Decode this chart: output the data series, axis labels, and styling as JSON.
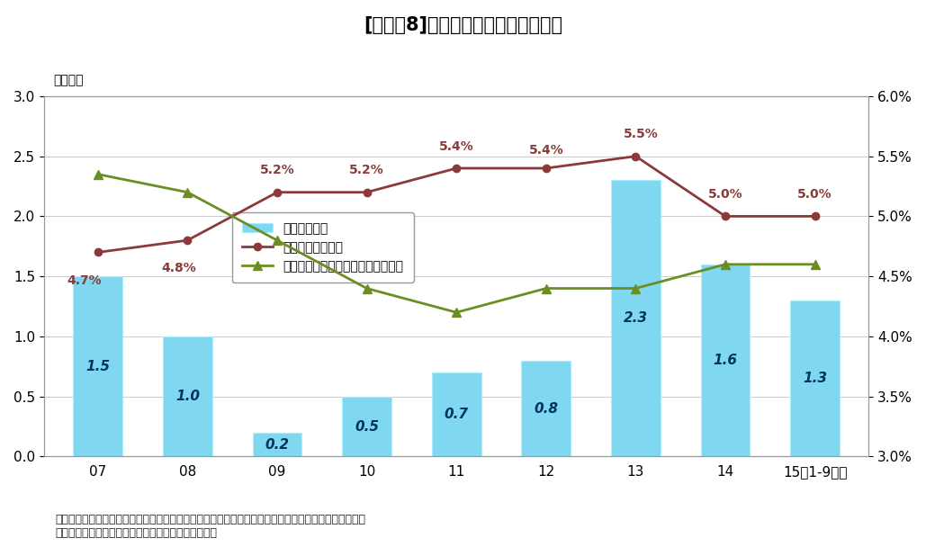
{
  "title": "[図表－8]：物件取得額と取得利回り",
  "categories": [
    "07",
    "08",
    "09",
    "10",
    "11",
    "12",
    "13",
    "14",
    "15（1-9月）"
  ],
  "bar_values": [
    1.5,
    1.0,
    0.2,
    0.5,
    0.7,
    0.8,
    2.3,
    1.6,
    1.3
  ],
  "bar_labels": [
    "1.5",
    "1.0",
    "0.2",
    "0.5",
    "0.7",
    "0.8",
    "2.3",
    "1.6",
    "1.3"
  ],
  "line1_values": [
    4.7,
    4.8,
    5.2,
    5.2,
    5.4,
    5.4,
    5.5,
    5.0,
    5.0
  ],
  "line1_labels": [
    "4.7%",
    "4.8%",
    "5.2%",
    "5.2%",
    "5.4%",
    "5.4%",
    "5.5%",
    "5.0%",
    "5.0%"
  ],
  "line2_values": [
    5.35,
    5.2,
    4.8,
    4.4,
    4.2,
    4.4,
    4.4,
    4.6,
    4.6
  ],
  "bar_color": "#7FD8F0",
  "line1_color": "#8B3A3A",
  "line2_color": "#6B8E23",
  "legend_bar": "取得額（左）",
  "legend_line1": "取得利回り（右）",
  "legend_line2": "既存ポート利回り（対総資産、右）",
  "ylabel_left": "（兆円）",
  "ylim_left": [
    0.0,
    3.0
  ],
  "ylim_right": [
    3.0,
    6.0
  ],
  "yticks_left": [
    0.0,
    0.5,
    1.0,
    1.5,
    2.0,
    2.5,
    3.0
  ],
  "yticks_right": [
    3.0,
    3.5,
    4.0,
    4.5,
    5.0,
    5.5,
    6.0
  ],
  "ytick_labels_right": [
    "3.0%",
    "3.5%",
    "4.0%",
    "4.5%",
    "5.0%",
    "5.5%",
    "6.0%"
  ],
  "note1": "（注）引渡しベース（優先出資証券は除く）。新規上場以前に取得した物件は上場日に取得したと想定",
  "note2": "（出所）開示資料をもとにニッセイ基礎研究所が作成",
  "background_color": "#FFFFFF",
  "figsize": [
    10.29,
    6.08
  ],
  "dpi": 100
}
